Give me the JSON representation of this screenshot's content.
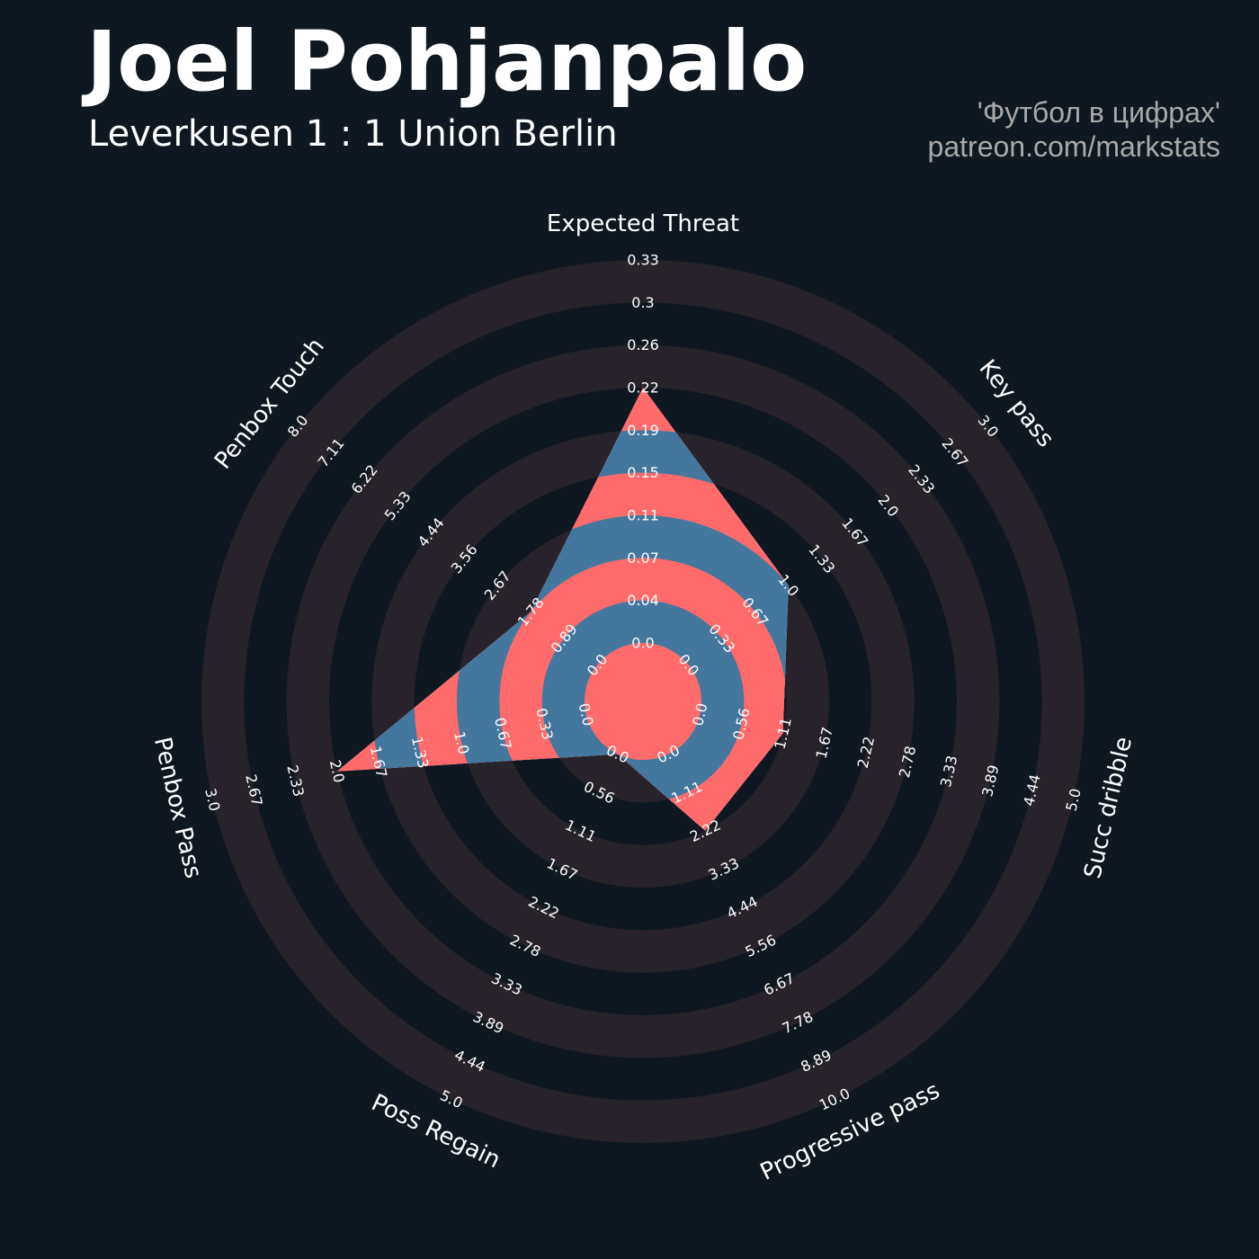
{
  "header": {
    "title": "Joel Pohjanpalo",
    "subtitle": "Leverkusen 1 : 1 Union Berlin",
    "credit_line1": "'Футбол в цифрах'",
    "credit_line2": "patreon.com/markstats"
  },
  "colors": {
    "background": "#0f1820",
    "ring_band": "#28232a",
    "polygon_red": "#ff6b6b",
    "polygon_blue": "#44779e",
    "text": "#ffffff",
    "credit": "#a9a9a9"
  },
  "chart_data": {
    "type": "radar",
    "title": "Joel Pohjanpalo",
    "subtitle": "Leverkusen 1 : 1 Union Berlin",
    "params": [
      "Expected Threat",
      "Key pass",
      "Succ dribble",
      "Progressive pass",
      "Poss Regain",
      "Penbox Pass",
      "Penbox Touch"
    ],
    "ranges": [
      [
        0,
        0.33
      ],
      [
        0,
        3.0
      ],
      [
        0,
        5.0
      ],
      [
        0,
        10.0
      ],
      [
        0,
        5.0
      ],
      [
        0,
        3.0
      ],
      [
        0,
        8.0
      ]
    ],
    "values": [
      0.22,
      1.0,
      1.11,
      2.22,
      0.0,
      2.0,
      1.78
    ],
    "tick_labels": [
      [
        "0.0",
        "0.04",
        "0.07",
        "0.11",
        "0.15",
        "0.19",
        "0.22",
        "0.26",
        "0.3",
        "0.33"
      ],
      [
        "0.0",
        "0.33",
        "0.67",
        "1.0",
        "1.33",
        "1.67",
        "2.0",
        "2.33",
        "2.67",
        "3.0"
      ],
      [
        "0.0",
        "0.56",
        "1.11",
        "1.67",
        "2.22",
        "2.78",
        "3.33",
        "3.89",
        "4.44",
        "5.0"
      ],
      [
        "0.0",
        "1.11",
        "2.22",
        "3.33",
        "4.44",
        "5.56",
        "6.67",
        "7.78",
        "8.89",
        "10.0"
      ],
      [
        "0.0",
        "0.56",
        "1.11",
        "1.67",
        "2.22",
        "2.78",
        "3.33",
        "3.89",
        "4.44",
        "5.0"
      ],
      [
        "0.0",
        "0.33",
        "0.67",
        "1.0",
        "1.33",
        "1.67",
        "2.0",
        "2.33",
        "2.67",
        "3.0"
      ],
      [
        "0.0",
        "0.89",
        "1.78",
        "2.67",
        "3.56",
        "4.44",
        "5.33",
        "6.22",
        "7.11",
        "8.0"
      ]
    ]
  }
}
